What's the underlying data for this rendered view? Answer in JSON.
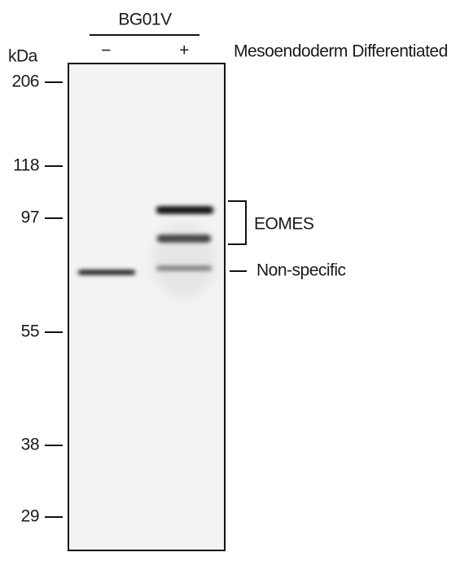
{
  "header": {
    "cell_line": "BG01V",
    "lanes": [
      "−",
      "+"
    ],
    "condition": "Mesoendoderm Differentiated"
  },
  "markers": {
    "unit": "kDa",
    "labels": [
      "206",
      "118",
      "97",
      "55",
      "38",
      "29"
    ]
  },
  "annotations": {
    "bracket": "EOMES",
    "line": "Non-specific"
  }
}
